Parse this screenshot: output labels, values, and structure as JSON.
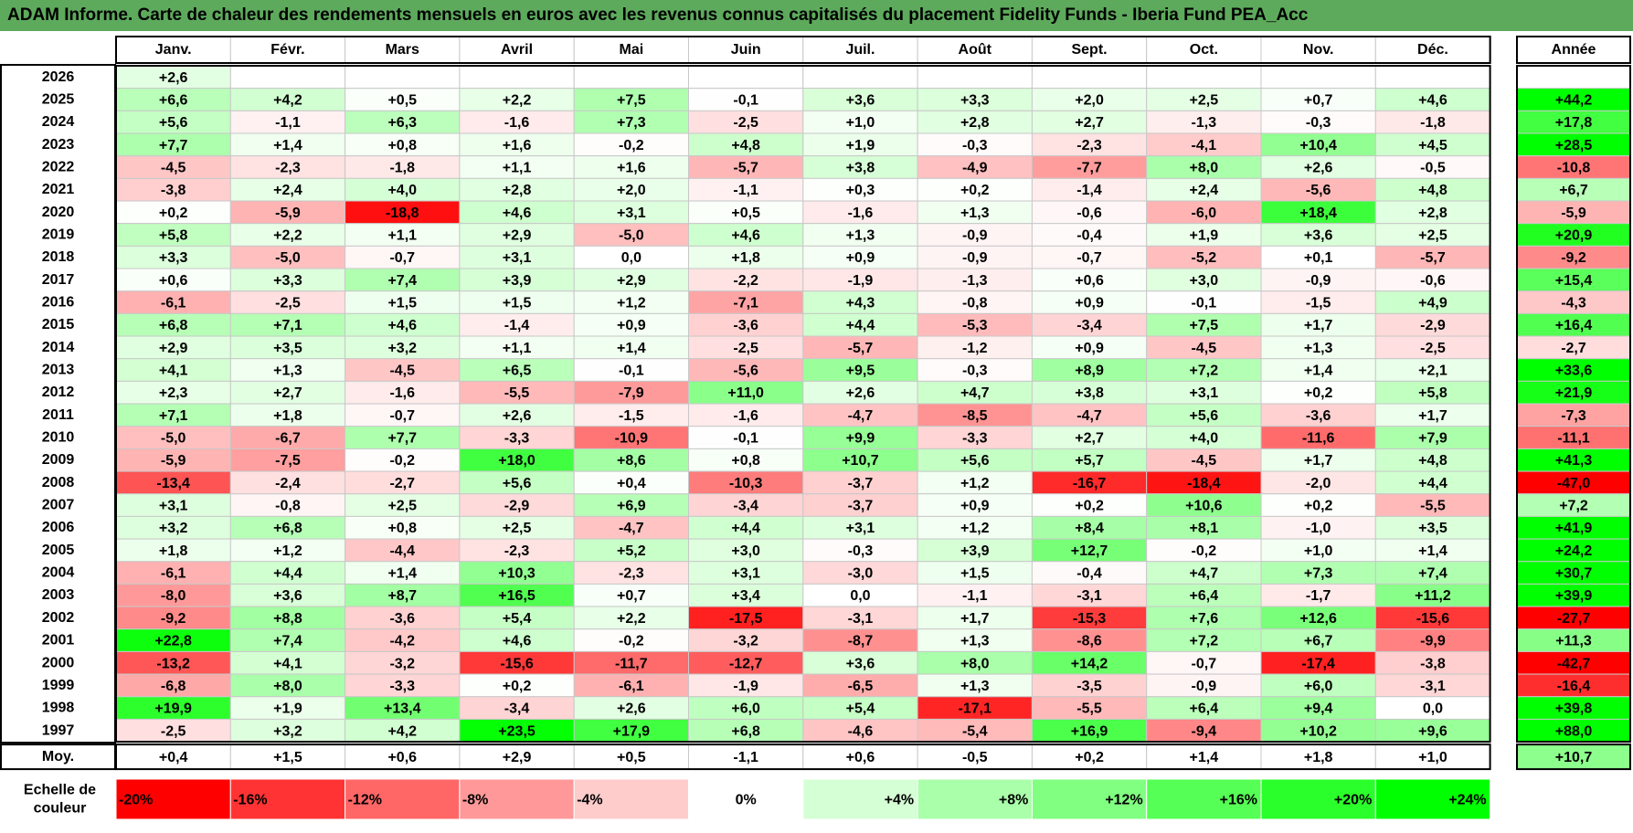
{
  "title": "ADAM Informe. Carte de chaleur des rendements mensuels en euros avec les revenus connus capitalisés du placement Fidelity Funds - Iberia Fund PEA_Acc",
  "colors": {
    "title_bg": "#5daa5c",
    "neg_max": "#ff0000",
    "pos_max": "#00ff00",
    "neutral": "#ffffff"
  },
  "chart_data": {
    "type": "heatmap",
    "title": "ADAM Informe. Carte de chaleur des rendements mensuels en euros avec les revenus connus capitalisés du placement Fidelity Funds - Iberia Fund PEA_Acc",
    "columns": [
      "Janv.",
      "Févr.",
      "Mars",
      "Avril",
      "Mai",
      "Juin",
      "Juil.",
      "Août",
      "Sept.",
      "Oct.",
      "Nov.",
      "Déc."
    ],
    "annual_header": "Année",
    "rows": [
      {
        "year": "2026",
        "values": [
          "+2,6",
          null,
          null,
          null,
          null,
          null,
          null,
          null,
          null,
          null,
          null,
          null
        ],
        "annual": null
      },
      {
        "year": "2025",
        "values": [
          "+6,6",
          "+4,2",
          "+0,5",
          "+2,2",
          "+7,5",
          "-0,1",
          "+3,6",
          "+3,3",
          "+2,0",
          "+2,5",
          "+0,7",
          "+4,6"
        ],
        "annual": "+44,2"
      },
      {
        "year": "2024",
        "values": [
          "+5,6",
          "-1,1",
          "+6,3",
          "-1,6",
          "+7,3",
          "-2,5",
          "+1,0",
          "+2,8",
          "+2,7",
          "-1,3",
          "-0,3",
          "-1,8"
        ],
        "annual": "+17,8"
      },
      {
        "year": "2023",
        "values": [
          "+7,7",
          "+1,4",
          "+0,8",
          "+1,6",
          "-0,2",
          "+4,8",
          "+1,9",
          "-0,3",
          "-2,3",
          "-4,1",
          "+10,4",
          "+4,5"
        ],
        "annual": "+28,5"
      },
      {
        "year": "2022",
        "values": [
          "-4,5",
          "-2,3",
          "-1,8",
          "+1,1",
          "+1,6",
          "-5,7",
          "+3,8",
          "-4,9",
          "-7,7",
          "+8,0",
          "+2,6",
          "-0,5"
        ],
        "annual": "-10,8"
      },
      {
        "year": "2021",
        "values": [
          "-3,8",
          "+2,4",
          "+4,0",
          "+2,8",
          "+2,0",
          "-1,1",
          "+0,3",
          "+0,2",
          "-1,4",
          "+2,4",
          "-5,6",
          "+4,8"
        ],
        "annual": "+6,7"
      },
      {
        "year": "2020",
        "values": [
          "+0,2",
          "-5,9",
          "-18,8",
          "+4,6",
          "+3,1",
          "+0,5",
          "-1,6",
          "+1,3",
          "-0,6",
          "-6,0",
          "+18,4",
          "+2,8"
        ],
        "annual": "-5,9"
      },
      {
        "year": "2019",
        "values": [
          "+5,8",
          "+2,2",
          "+1,1",
          "+2,9",
          "-5,0",
          "+4,6",
          "+1,3",
          "-0,9",
          "-0,4",
          "+1,9",
          "+3,6",
          "+2,5"
        ],
        "annual": "+20,9"
      },
      {
        "year": "2018",
        "values": [
          "+3,3",
          "-5,0",
          "-0,7",
          "+3,1",
          "0,0",
          "+1,8",
          "+0,9",
          "-0,9",
          "-0,7",
          "-5,2",
          "+0,1",
          "-5,7"
        ],
        "annual": "-9,2"
      },
      {
        "year": "2017",
        "values": [
          "+0,6",
          "+3,3",
          "+7,4",
          "+3,9",
          "+2,9",
          "-2,2",
          "-1,9",
          "-1,3",
          "+0,6",
          "+3,0",
          "-0,9",
          "-0,6"
        ],
        "annual": "+15,4"
      },
      {
        "year": "2016",
        "values": [
          "-6,1",
          "-2,5",
          "+1,5",
          "+1,5",
          "+1,2",
          "-7,1",
          "+4,3",
          "-0,8",
          "+0,9",
          "-0,1",
          "-1,5",
          "+4,9"
        ],
        "annual": "-4,3"
      },
      {
        "year": "2015",
        "values": [
          "+6,8",
          "+7,1",
          "+4,6",
          "-1,4",
          "+0,9",
          "-3,6",
          "+4,4",
          "-5,3",
          "-3,4",
          "+7,5",
          "+1,7",
          "-2,9"
        ],
        "annual": "+16,4"
      },
      {
        "year": "2014",
        "values": [
          "+2,9",
          "+3,5",
          "+3,2",
          "+1,1",
          "+1,4",
          "-2,5",
          "-5,7",
          "-1,2",
          "+0,9",
          "-4,5",
          "+1,3",
          "-2,5"
        ],
        "annual": "-2,7"
      },
      {
        "year": "2013",
        "values": [
          "+4,1",
          "+1,3",
          "-4,5",
          "+6,5",
          "-0,1",
          "-5,6",
          "+9,5",
          "-0,3",
          "+8,9",
          "+7,2",
          "+1,4",
          "+2,1"
        ],
        "annual": "+33,6"
      },
      {
        "year": "2012",
        "values": [
          "+2,3",
          "+2,7",
          "-1,6",
          "-5,5",
          "-7,9",
          "+11,0",
          "+2,6",
          "+4,7",
          "+3,8",
          "+3,1",
          "+0,2",
          "+5,8"
        ],
        "annual": "+21,9"
      },
      {
        "year": "2011",
        "values": [
          "+7,1",
          "+1,8",
          "-0,7",
          "+2,6",
          "-1,5",
          "-1,6",
          "-4,7",
          "-8,5",
          "-4,7",
          "+5,6",
          "-3,6",
          "+1,7"
        ],
        "annual": "-7,3"
      },
      {
        "year": "2010",
        "values": [
          "-5,0",
          "-6,7",
          "+7,7",
          "-3,3",
          "-10,9",
          "-0,1",
          "+9,9",
          "-3,3",
          "+2,7",
          "+4,0",
          "-11,6",
          "+7,9"
        ],
        "annual": "-11,1"
      },
      {
        "year": "2009",
        "values": [
          "-5,9",
          "-7,5",
          "-0,2",
          "+18,0",
          "+8,6",
          "+0,8",
          "+10,7",
          "+5,6",
          "+5,7",
          "-4,5",
          "+1,7",
          "+4,8"
        ],
        "annual": "+41,3"
      },
      {
        "year": "2008",
        "values": [
          "-13,4",
          "-2,4",
          "-2,7",
          "+5,6",
          "+0,4",
          "-10,3",
          "-3,7",
          "+1,2",
          "-16,7",
          "-18,4",
          "-2,0",
          "+4,4"
        ],
        "annual": "-47,0"
      },
      {
        "year": "2007",
        "values": [
          "+3,1",
          "-0,8",
          "+2,5",
          "-2,9",
          "+6,9",
          "-3,4",
          "-3,7",
          "+0,9",
          "+0,2",
          "+10,6",
          "+0,2",
          "-5,5"
        ],
        "annual": "+7,2"
      },
      {
        "year": "2006",
        "values": [
          "+3,2",
          "+6,8",
          "+0,8",
          "+2,5",
          "-4,7",
          "+4,4",
          "+3,1",
          "+1,2",
          "+8,4",
          "+8,1",
          "-1,0",
          "+3,5"
        ],
        "annual": "+41,9"
      },
      {
        "year": "2005",
        "values": [
          "+1,8",
          "+1,2",
          "-4,4",
          "-2,3",
          "+5,2",
          "+3,0",
          "-0,3",
          "+3,9",
          "+12,7",
          "-0,2",
          "+1,0",
          "+1,4"
        ],
        "annual": "+24,2"
      },
      {
        "year": "2004",
        "values": [
          "-6,1",
          "+4,4",
          "+1,4",
          "+10,3",
          "-2,3",
          "+3,1",
          "-3,0",
          "+1,5",
          "-0,4",
          "+4,7",
          "+7,3",
          "+7,4"
        ],
        "annual": "+30,7"
      },
      {
        "year": "2003",
        "values": [
          "-8,0",
          "+3,6",
          "+8,7",
          "+16,5",
          "+0,7",
          "+3,4",
          "0,0",
          "-1,1",
          "-3,1",
          "+6,4",
          "-1,7",
          "+11,2"
        ],
        "annual": "+39,9"
      },
      {
        "year": "2002",
        "values": [
          "-9,2",
          "+8,8",
          "-3,6",
          "+5,4",
          "+2,2",
          "-17,5",
          "-3,1",
          "+1,7",
          "-15,3",
          "+7,6",
          "+12,6",
          "-15,6"
        ],
        "annual": "-27,7"
      },
      {
        "year": "2001",
        "values": [
          "+22,8",
          "+7,4",
          "-4,2",
          "+4,6",
          "-0,2",
          "-3,2",
          "-8,7",
          "+1,3",
          "-8,6",
          "+7,2",
          "+6,7",
          "-9,9"
        ],
        "annual": "+11,3"
      },
      {
        "year": "2000",
        "values": [
          "-13,2",
          "+4,1",
          "-3,2",
          "-15,6",
          "-11,7",
          "-12,7",
          "+3,6",
          "+8,0",
          "+14,2",
          "-0,7",
          "-17,4",
          "-3,8"
        ],
        "annual": "-42,7"
      },
      {
        "year": "1999",
        "values": [
          "-6,8",
          "+8,0",
          "-3,3",
          "+0,2",
          "-6,1",
          "-1,9",
          "-6,5",
          "+1,3",
          "-3,5",
          "-0,9",
          "+6,0",
          "-3,1"
        ],
        "annual": "-16,4"
      },
      {
        "year": "1998",
        "values": [
          "+19,9",
          "+1,9",
          "+13,4",
          "-3,4",
          "+2,6",
          "+6,0",
          "+5,4",
          "-17,1",
          "-5,5",
          "+6,4",
          "+9,4",
          "0,0"
        ],
        "annual": "+39,8"
      },
      {
        "year": "1997",
        "values": [
          "-2,5",
          "+3,2",
          "+4,2",
          "+23,5",
          "+17,9",
          "+6,8",
          "-4,6",
          "-5,4",
          "+16,9",
          "-9,4",
          "+10,2",
          "+9,6"
        ],
        "annual": "+88,0"
      }
    ],
    "average": {
      "label": "Moy.",
      "values": [
        "+0,4",
        "+1,5",
        "+0,6",
        "+2,9",
        "+0,5",
        "-1,1",
        "+0,6",
        "-0,5",
        "+0,2",
        "+1,4",
        "+1,8",
        "+1,0"
      ],
      "annual": "+10,7"
    },
    "scale": {
      "label_line1": "Echelle de",
      "label_line2": "couleur",
      "stops": [
        "-20%",
        "-16%",
        "-12%",
        "-8%",
        "-4%",
        "0%",
        "+4%",
        "+8%",
        "+12%",
        "+16%",
        "+20%",
        "+24%"
      ],
      "stop_values": [
        -20,
        -16,
        -12,
        -8,
        -4,
        0,
        4,
        8,
        12,
        16,
        20,
        24
      ]
    }
  }
}
